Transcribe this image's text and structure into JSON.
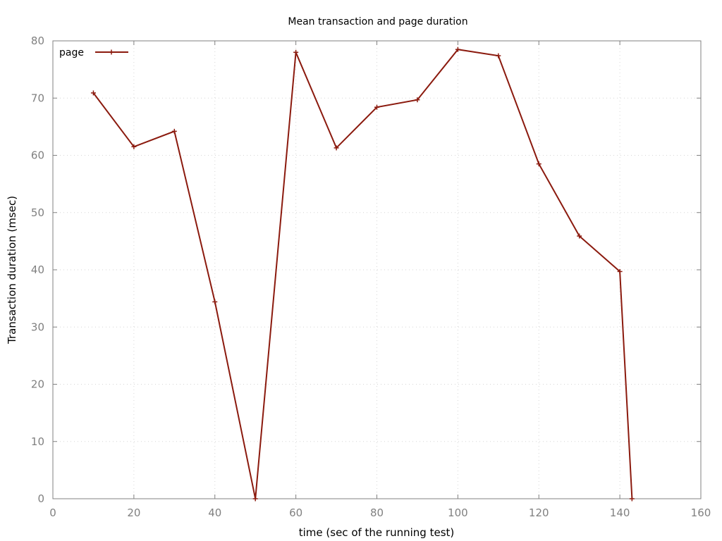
{
  "chart_data": {
    "type": "line",
    "title": "Mean transaction and page duration",
    "xlabel": "time (sec of the running test)",
    "ylabel": "Transaction duration (msec)",
    "xlim": [
      0,
      160
    ],
    "ylim": [
      0,
      80
    ],
    "xticks": [
      0,
      20,
      40,
      60,
      80,
      100,
      120,
      140,
      160
    ],
    "yticks": [
      0,
      10,
      20,
      30,
      40,
      50,
      60,
      70,
      80
    ],
    "grid": true,
    "legend_position": "top-left",
    "series": [
      {
        "name": "page",
        "color": "#8b1a0e",
        "x": [
          10,
          20,
          30,
          40,
          50,
          60,
          70,
          80,
          90,
          100,
          110,
          120,
          130,
          140,
          143
        ],
        "y": [
          70.9,
          61.5,
          64.2,
          34.4,
          0,
          78.0,
          61.3,
          68.4,
          69.7,
          78.5,
          77.4,
          58.5,
          45.9,
          39.7,
          0
        ]
      }
    ]
  }
}
